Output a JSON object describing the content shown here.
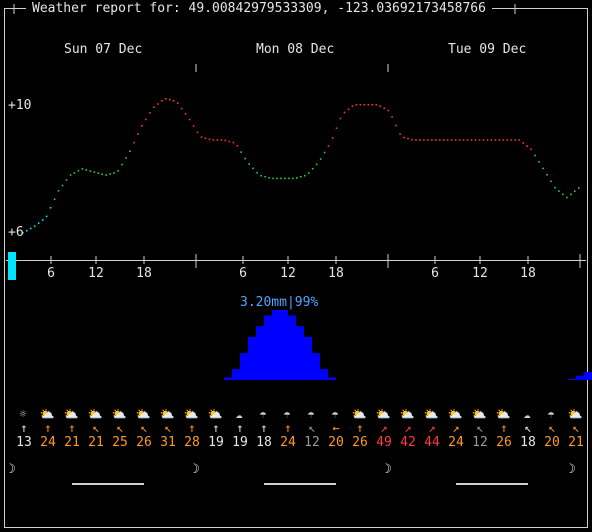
{
  "title": "Weather report for: 49.00842979533309, -123.03692173458766",
  "days": [
    "Sun 07 Dec",
    "Mon 08 Dec",
    "Tue 09 Dec"
  ],
  "temp_labels": {
    "top": "+10",
    "bottom": "+6"
  },
  "hour_labels": [
    "6",
    "12",
    "18",
    "6",
    "12",
    "18",
    "6",
    "12",
    "18"
  ],
  "precip_label": "3.20mm|99%",
  "weather_icons": [
    "sun",
    "cloud-sun",
    "cloud-sun",
    "cloud-sun",
    "cloud-sun",
    "cloud-sun",
    "cloud-sun",
    "cloud-sun",
    "cloud-sun",
    "cloud",
    "cloud-rain",
    "cloud-rain",
    "cloud-rain",
    "cloud-rain",
    "cloud-sun",
    "cloud-sun",
    "cloud-sun",
    "cloud-sun",
    "cloud-sun",
    "cloud-sun",
    "cloud-sun",
    "cloud",
    "cloud-rain",
    "cloud-sun"
  ],
  "wind_speeds": [
    "13",
    "24",
    "21",
    "21",
    "25",
    "26",
    "31",
    "28",
    "19",
    "19",
    "18",
    "24",
    "12",
    "20",
    "26",
    "49",
    "42",
    "44",
    "24",
    "12",
    "26",
    "18",
    "20",
    "21"
  ],
  "wind_arrows": [
    "↑",
    "↑",
    "↑",
    "↖",
    "↖",
    "↖",
    "↖",
    "↑",
    "↑",
    "↑",
    "↑",
    "↑",
    "↖",
    "←",
    "↑",
    "↗",
    "↗",
    "↗",
    "↗",
    "↖",
    "↑",
    "↖",
    "↖",
    "↖"
  ],
  "wind_colors": [
    "w",
    "o",
    "o",
    "o",
    "o",
    "o",
    "o",
    "o",
    "w",
    "w",
    "w",
    "o",
    "g",
    "o",
    "o",
    "r",
    "r",
    "r",
    "o",
    "g",
    "o",
    "w",
    "o",
    "o"
  ],
  "moon_phases": [
    "☽",
    "☽",
    "☽",
    "☽"
  ],
  "chart_data": {
    "type": "line",
    "title": "",
    "series": [
      {
        "name": "",
        "values": [
          6.0,
          6.2,
          6.5,
          7.3,
          7.8,
          8.0,
          7.9,
          7.8,
          7.9,
          8.5,
          9.3,
          9.9,
          10.2,
          10.1,
          9.6,
          9.0,
          8.9,
          8.9,
          8.8,
          8.2,
          7.8,
          7.7,
          7.7,
          7.7,
          7.8,
          8.2,
          8.8,
          9.7,
          10.0,
          10.0,
          10.0,
          9.8,
          9.0,
          8.9,
          8.9,
          8.9,
          8.9,
          8.9,
          8.9,
          8.9,
          8.9,
          8.9,
          8.9,
          8.6,
          8.0,
          7.4,
          7.1,
          7.4
        ]
      }
    ],
    "precipitation": {
      "name": "",
      "values": [
        0,
        0,
        0,
        0,
        0,
        0,
        0,
        0,
        0,
        0,
        0,
        0,
        0,
        0,
        0,
        0,
        0,
        0,
        0,
        0,
        0,
        0,
        0,
        0,
        0,
        0,
        0,
        0.05,
        0.2,
        0.5,
        0.8,
        1.0,
        1.2,
        1.3,
        1.3,
        1.2,
        1.0,
        0.8,
        0.5,
        0.2,
        0.05,
        0,
        0,
        0,
        0,
        0,
        0,
        0,
        0,
        0,
        0,
        0,
        0,
        0,
        0,
        0,
        0,
        0,
        0,
        0,
        0,
        0,
        0,
        0,
        0,
        0,
        0,
        0,
        0,
        0,
        0.02,
        0.08,
        0.15,
        0.2,
        0.22,
        0.2
      ]
    },
    "ylabel": "",
    "ylim": [
      6,
      10.5
    ]
  }
}
